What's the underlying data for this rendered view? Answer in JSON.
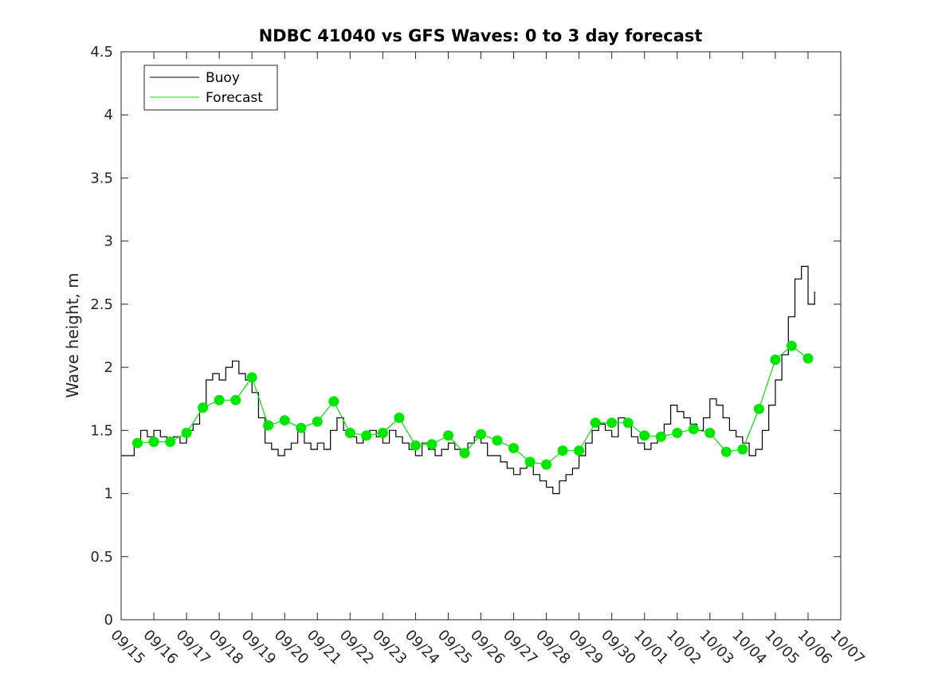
{
  "chart_data": {
    "type": "line",
    "title": "NDBC 41040 vs GFS Waves: 0 to 3 day forecast",
    "xlabel": "",
    "ylabel": "Wave height, m",
    "ylim": [
      0,
      4.5
    ],
    "yticks": [
      "0",
      "0.5",
      "1",
      "1.5",
      "2",
      "2.5",
      "3",
      "3.5",
      "4",
      "4.5"
    ],
    "xlim_days": [
      0,
      22
    ],
    "xticks": [
      "09/15",
      "09/16",
      "09/17",
      "09/18",
      "09/19",
      "09/20",
      "09/21",
      "09/22",
      "09/23",
      "09/24",
      "09/25",
      "09/26",
      "09/27",
      "09/28",
      "09/29",
      "09/30",
      "10/01",
      "10/02",
      "10/03",
      "10/04",
      "10/05",
      "10/06",
      "10/07"
    ],
    "grid": false,
    "legend": {
      "position": "top-left",
      "entries": [
        {
          "name": "Buoy",
          "color": "#000000"
        },
        {
          "name": "Forecast",
          "color": "#00e600"
        }
      ]
    },
    "series": [
      {
        "name": "Buoy",
        "color": "#000000",
        "x": [
          0,
          0.2,
          0.4,
          0.6,
          0.8,
          1.0,
          1.2,
          1.4,
          1.6,
          1.8,
          2.0,
          2.2,
          2.4,
          2.6,
          2.8,
          3.0,
          3.2,
          3.4,
          3.6,
          3.8,
          4.0,
          4.2,
          4.4,
          4.6,
          4.8,
          5.0,
          5.2,
          5.4,
          5.6,
          5.8,
          6.0,
          6.2,
          6.4,
          6.6,
          6.8,
          7.0,
          7.2,
          7.4,
          7.6,
          7.8,
          8.0,
          8.2,
          8.4,
          8.6,
          8.8,
          9.0,
          9.2,
          9.4,
          9.6,
          9.8,
          10.0,
          10.2,
          10.4,
          10.6,
          10.8,
          11.0,
          11.2,
          11.4,
          11.6,
          11.8,
          12.0,
          12.2,
          12.4,
          12.6,
          12.8,
          13.0,
          13.2,
          13.4,
          13.6,
          13.8,
          14.0,
          14.2,
          14.4,
          14.6,
          14.8,
          15.0,
          15.2,
          15.4,
          15.6,
          15.8,
          16.0,
          16.2,
          16.4,
          16.6,
          16.8,
          17.0,
          17.2,
          17.4,
          17.6,
          17.8,
          18.0,
          18.2,
          18.4,
          18.6,
          18.8,
          19.0,
          19.2,
          19.4,
          19.6,
          19.8,
          20.0,
          20.2,
          20.4,
          20.6,
          20.8,
          21.0,
          21.2
        ],
        "values": [
          1.3,
          1.3,
          1.4,
          1.5,
          1.45,
          1.5,
          1.45,
          1.4,
          1.45,
          1.4,
          1.5,
          1.55,
          1.7,
          1.9,
          1.95,
          1.9,
          2.0,
          2.05,
          1.95,
          1.9,
          1.8,
          1.6,
          1.4,
          1.35,
          1.3,
          1.35,
          1.4,
          1.5,
          1.4,
          1.35,
          1.4,
          1.35,
          1.5,
          1.6,
          1.5,
          1.45,
          1.4,
          1.45,
          1.5,
          1.45,
          1.4,
          1.5,
          1.45,
          1.4,
          1.35,
          1.3,
          1.4,
          1.35,
          1.3,
          1.35,
          1.4,
          1.35,
          1.3,
          1.4,
          1.45,
          1.4,
          1.3,
          1.3,
          1.25,
          1.2,
          1.15,
          1.2,
          1.25,
          1.15,
          1.1,
          1.05,
          1.0,
          1.1,
          1.15,
          1.2,
          1.3,
          1.4,
          1.5,
          1.55,
          1.5,
          1.45,
          1.6,
          1.55,
          1.45,
          1.4,
          1.35,
          1.4,
          1.45,
          1.55,
          1.7,
          1.65,
          1.6,
          1.55,
          1.5,
          1.6,
          1.75,
          1.7,
          1.6,
          1.5,
          1.45,
          1.4,
          1.3,
          1.35,
          1.5,
          1.7,
          1.9,
          2.1,
          2.4,
          2.7,
          2.8,
          2.5,
          2.6
        ]
      },
      {
        "name": "Forecast",
        "color": "#00e600",
        "x": [
          0.5,
          1.0,
          1.5,
          2.0,
          2.5,
          3.0,
          3.5,
          4.0,
          4.5,
          5.0,
          5.5,
          6.0,
          6.5,
          7.0,
          7.5,
          8.0,
          8.5,
          9.0,
          9.5,
          10.0,
          10.5,
          11.0,
          11.5,
          12.0,
          12.5,
          13.0,
          13.5,
          14.0,
          14.5,
          15.0,
          15.5,
          16.0,
          16.5,
          17.0,
          17.5,
          18.0,
          18.5,
          19.0,
          19.5,
          20.0,
          20.5,
          21.0
        ],
        "values": [
          1.4,
          1.41,
          1.41,
          1.48,
          1.68,
          1.74,
          1.74,
          1.92,
          1.54,
          1.58,
          1.52,
          1.57,
          1.73,
          1.48,
          1.46,
          1.48,
          1.6,
          1.38,
          1.39,
          1.46,
          1.32,
          1.47,
          1.42,
          1.36,
          1.25,
          1.23,
          1.34,
          1.34,
          1.56,
          1.56,
          1.56,
          1.46,
          1.45,
          1.48,
          1.51,
          1.48,
          1.33,
          1.35,
          1.67,
          2.06,
          2.17,
          2.07
        ]
      }
    ]
  }
}
